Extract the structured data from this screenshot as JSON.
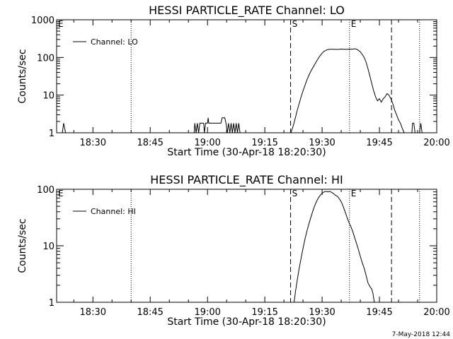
{
  "chart_data": [
    {
      "type": "line",
      "title": "HESSI PARTICLE_RATE Channel: LO",
      "xlabel": "Start Time (30-Apr-18 18:20:30)",
      "ylabel": "Counts/sec",
      "yscale": "log",
      "ylim": [
        1,
        1000
      ],
      "xlim": [
        "18:20:30",
        "20:00:00"
      ],
      "x_tick_labels": [
        "18:30",
        "18:45",
        "19:00",
        "19:15",
        "19:30",
        "19:45",
        "20:00"
      ],
      "y_tick_labels": [
        "1",
        "10",
        "100",
        "1000"
      ],
      "legend": {
        "position": "top-left",
        "entries": [
          "Channel: LO"
        ]
      },
      "grid": false,
      "markers": [
        {
          "label": "",
          "time": "18:40:00",
          "style": "dotted"
        },
        {
          "label": "S",
          "time": "19:21:45",
          "style": "dashed"
        },
        {
          "label": "E",
          "time": "19:37:10",
          "style": "dotted"
        },
        {
          "label": "",
          "time": "19:48:10",
          "style": "dashed"
        },
        {
          "label": "",
          "time": "19:55:30",
          "style": "dotted"
        }
      ],
      "corner_labels": [
        "E"
      ],
      "series": [
        {
          "name": "Channel: LO",
          "segments": [
            [
              [
                "18:22:00",
                1
              ],
              [
                "18:22:20",
                1.8
              ],
              [
                "18:22:50",
                1
              ],
              [
                "18:23:20",
                1
              ]
            ],
            [
              [
                "18:56:30",
                1
              ],
              [
                "18:56:40",
                1.8
              ],
              [
                "18:57:00",
                1
              ],
              [
                "18:57:20",
                1.8
              ],
              [
                "18:57:40",
                1
              ],
              [
                "18:58:00",
                1.8
              ],
              [
                "18:59:00",
                1.8
              ],
              [
                "18:59:10",
                1
              ],
              [
                "18:59:30",
                1.8
              ],
              [
                "19:00:00",
                1.8
              ],
              [
                "19:00:10",
                2.5
              ],
              [
                "19:00:20",
                1.8
              ],
              [
                "19:03:30",
                1.8
              ],
              [
                "19:03:50",
                2.5
              ],
              [
                "19:04:30",
                2.5
              ],
              [
                "19:04:50",
                1.8
              ],
              [
                "19:05:10",
                1
              ],
              [
                "19:05:30",
                1.8
              ],
              [
                "19:05:50",
                1
              ],
              [
                "19:06:10",
                1.8
              ],
              [
                "19:06:30",
                1
              ],
              [
                "19:06:50",
                1.8
              ],
              [
                "19:07:10",
                1
              ],
              [
                "19:07:30",
                1.8
              ],
              [
                "19:07:50",
                1
              ],
              [
                "19:08:10",
                1.8
              ],
              [
                "19:08:30",
                1
              ]
            ],
            [
              [
                "19:21:50",
                1
              ],
              [
                "19:22:30",
                1.6
              ],
              [
                "19:23:00",
                2.5
              ],
              [
                "19:23:30",
                4
              ],
              [
                "19:24:00",
                6
              ],
              [
                "19:24:30",
                9
              ],
              [
                "19:25:00",
                13
              ],
              [
                "19:25:30",
                18
              ],
              [
                "19:26:00",
                25
              ],
              [
                "19:26:30",
                33
              ],
              [
                "19:27:00",
                42
              ],
              [
                "19:27:30",
                52
              ],
              [
                "19:28:00",
                64
              ],
              [
                "19:28:30",
                78
              ],
              [
                "19:29:00",
                95
              ],
              [
                "19:29:30",
                112
              ],
              [
                "19:30:00",
                130
              ],
              [
                "19:30:30",
                145
              ],
              [
                "19:31:00",
                155
              ],
              [
                "19:31:30",
                162
              ],
              [
                "19:32:00",
                165
              ],
              [
                "19:33:00",
                165
              ],
              [
                "19:34:00",
                163
              ],
              [
                "19:35:00",
                167
              ],
              [
                "19:36:00",
                164
              ],
              [
                "19:37:00",
                166
              ],
              [
                "19:38:00",
                166
              ],
              [
                "19:38:30",
                170
              ],
              [
                "19:39:00",
                165
              ],
              [
                "19:39:30",
                155
              ],
              [
                "19:40:00",
                140
              ],
              [
                "19:40:30",
                120
              ],
              [
                "19:41:00",
                100
              ],
              [
                "19:41:30",
                75
              ],
              [
                "19:42:00",
                50
              ],
              [
                "19:42:30",
                32
              ],
              [
                "19:43:00",
                20
              ],
              [
                "19:43:30",
                13
              ],
              [
                "19:44:00",
                9
              ],
              [
                "19:44:30",
                7
              ],
              [
                "19:45:00",
                8
              ],
              [
                "19:45:30",
                6.5
              ],
              [
                "19:46:00",
                8
              ],
              [
                "19:46:30",
                9
              ],
              [
                "19:47:00",
                11
              ],
              [
                "19:47:30",
                10
              ],
              [
                "19:48:00",
                8
              ],
              [
                "19:48:30",
                6
              ],
              [
                "19:49:00",
                4
              ],
              [
                "19:49:30",
                3
              ],
              [
                "19:50:00",
                2.2
              ],
              [
                "19:50:30",
                1.8
              ],
              [
                "19:51:00",
                1.3
              ],
              [
                "19:51:30",
                1
              ]
            ],
            [
              [
                "19:53:30",
                1
              ],
              [
                "19:53:40",
                1.8
              ],
              [
                "19:54:00",
                1.8
              ],
              [
                "19:54:20",
                1
              ]
            ],
            [
              [
                "19:55:30",
                1
              ],
              [
                "19:55:50",
                1.8
              ],
              [
                "19:56:10",
                1
              ]
            ]
          ]
        }
      ]
    },
    {
      "type": "line",
      "title": "HESSI PARTICLE_RATE Channel: HI",
      "xlabel": "Start Time (30-Apr-18 18:20:30)",
      "ylabel": "Counts/sec",
      "yscale": "log",
      "ylim": [
        1,
        100
      ],
      "xlim": [
        "18:20:30",
        "20:00:00"
      ],
      "x_tick_labels": [
        "18:30",
        "18:45",
        "19:00",
        "19:15",
        "19:30",
        "19:45",
        "20:00"
      ],
      "y_tick_labels": [
        "1",
        "10",
        "100"
      ],
      "legend": {
        "position": "top-left",
        "entries": [
          "Channel: HI"
        ]
      },
      "grid": false,
      "markers": [
        {
          "label": "",
          "time": "18:40:00",
          "style": "dotted"
        },
        {
          "label": "S",
          "time": "19:21:45",
          "style": "dashed"
        },
        {
          "label": "E",
          "time": "19:37:10",
          "style": "dotted"
        },
        {
          "label": "",
          "time": "19:48:10",
          "style": "dashed"
        },
        {
          "label": "",
          "time": "19:55:30",
          "style": "dotted"
        }
      ],
      "corner_labels": [
        "E"
      ],
      "series": [
        {
          "name": "Channel: HI",
          "segments": [
            [
              [
                "19:22:40",
                1
              ],
              [
                "19:23:00",
                1.5
              ],
              [
                "19:23:30",
                2.5
              ],
              [
                "19:24:00",
                4
              ],
              [
                "19:24:30",
                6
              ],
              [
                "19:25:00",
                9
              ],
              [
                "19:25:30",
                13
              ],
              [
                "19:26:00",
                18
              ],
              [
                "19:26:30",
                24
              ],
              [
                "19:27:00",
                31
              ],
              [
                "19:27:30",
                40
              ],
              [
                "19:28:00",
                50
              ],
              [
                "19:28:30",
                60
              ],
              [
                "19:29:00",
                70
              ],
              [
                "19:29:30",
                78
              ],
              [
                "19:30:00",
                85
              ],
              [
                "19:30:30",
                90
              ],
              [
                "19:31:00",
                92
              ],
              [
                "19:31:30",
                90
              ],
              [
                "19:32:00",
                92
              ],
              [
                "19:32:30",
                88
              ],
              [
                "19:33:00",
                84
              ],
              [
                "19:33:30",
                78
              ],
              [
                "19:34:00",
                75
              ],
              [
                "19:34:30",
                68
              ],
              [
                "19:35:00",
                60
              ],
              [
                "19:35:30",
                50
              ],
              [
                "19:36:00",
                40
              ],
              [
                "19:36:30",
                32
              ],
              [
                "19:37:00",
                26
              ],
              [
                "19:37:30",
                22
              ],
              [
                "19:38:00",
                18
              ],
              [
                "19:38:30",
                14
              ],
              [
                "19:39:00",
                11
              ],
              [
                "19:39:30",
                8.5
              ],
              [
                "19:40:00",
                6.5
              ],
              [
                "19:40:30",
                5
              ],
              [
                "19:41:00",
                4
              ],
              [
                "19:41:30",
                3
              ],
              [
                "19:42:00",
                2.2
              ],
              [
                "19:42:30",
                1.9
              ],
              [
                "19:43:00",
                1.7
              ],
              [
                "19:43:20",
                1.4
              ],
              [
                "19:43:40",
                1
              ]
            ]
          ]
        }
      ]
    }
  ],
  "footer": {
    "date_stamp": "7-May-2018 12:44"
  }
}
